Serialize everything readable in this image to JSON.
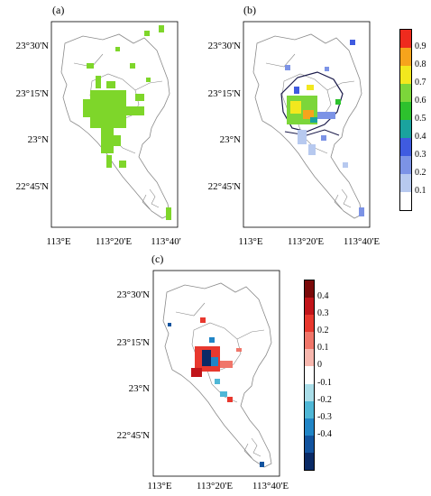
{
  "panels": [
    {
      "id": "a",
      "label": "(a)"
    },
    {
      "id": "b",
      "label": "(b)"
    },
    {
      "id": "c",
      "label": "(c)"
    }
  ],
  "axes": {
    "y_ticks": [
      "23°30'N",
      "23°15'N",
      "23°N",
      "22°45'N"
    ],
    "x_ticks_a": [
      "113°E",
      "113°20'E",
      "113°40'"
    ],
    "x_ticks_b": [
      "113°E",
      "113°20'E",
      "113°40'E"
    ],
    "x_ticks_c": [
      "113°E",
      "113°20'E",
      "113°40'E"
    ]
  },
  "colorbar_b": {
    "labels": [
      "0.9",
      "0.8",
      "0.7",
      "0.6",
      "0.5",
      "0.4",
      "0.3",
      "0.2",
      "0.1"
    ],
    "colors": [
      "#ffffff",
      "#b7c9ef",
      "#7c93e6",
      "#3f5be0",
      "#1aa39e",
      "#2dc12d",
      "#7cd63a",
      "#f2e81e",
      "#f6a41c",
      "#ee2b1e"
    ]
  },
  "colorbar_c": {
    "labels": [
      "0.4",
      "0.3",
      "0.2",
      "0.1",
      "0",
      "-0.1",
      "-0.2",
      "-0.3",
      "-0.4"
    ],
    "colors": [
      "#7a0a0a",
      "#c1151a",
      "#e8382e",
      "#f0766a",
      "#f7b7ae",
      "#ffffff",
      "#a9dde8",
      "#4fb7d6",
      "#2185c6",
      "#12539e",
      "#0a2a66"
    ]
  },
  "colors": {
    "map_fill": "#ffffff",
    "boundary": "#8a8a8a",
    "dark_boundary": "#1a1a4a",
    "green_data": "#7ed62a"
  }
}
